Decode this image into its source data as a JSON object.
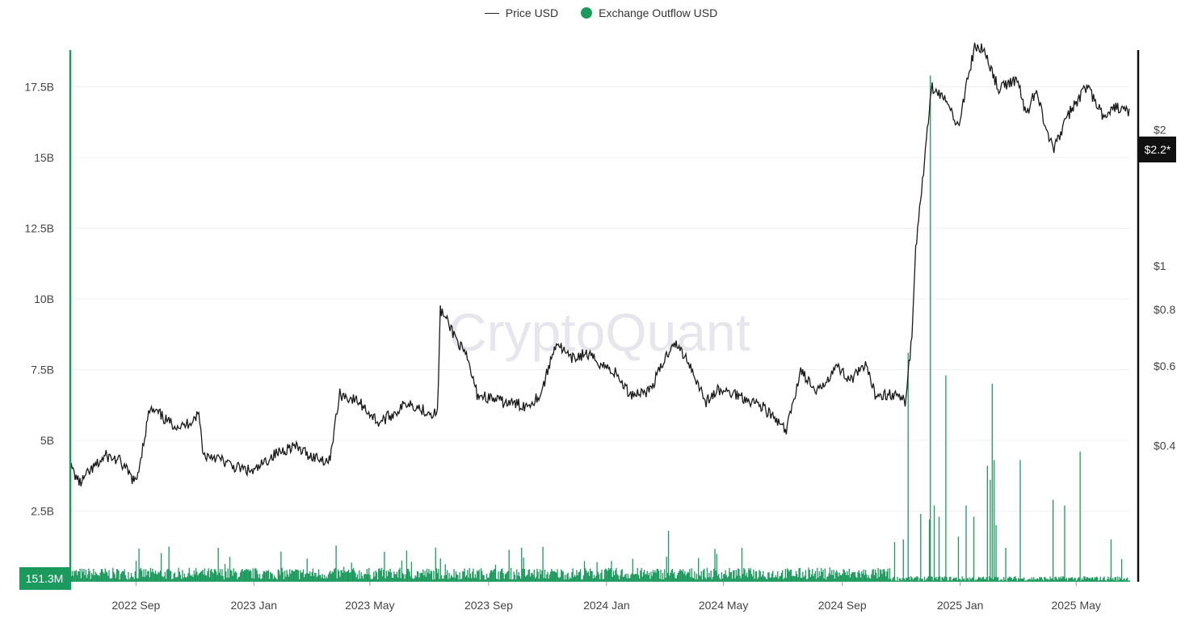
{
  "legend": {
    "price_label": "Price USD",
    "outflow_label": "Exchange Outflow USD"
  },
  "watermark": "CryptoQuant",
  "colors": {
    "price_line": "#1a1a1a",
    "outflow_bar": "#1c9a5e",
    "left_axis_line": "#1c9a5e",
    "right_axis_line": "#111111",
    "grid": "#f0f0f2",
    "left_tag_bg": "#1c9a5e",
    "right_tag_bg": "#111111"
  },
  "chart_data": {
    "type": "bar+line",
    "x_range": [
      "2022-06-25",
      "2025-06-25"
    ],
    "x_ticks": [
      "2022 Sep",
      "2023 Jan",
      "2023 May",
      "2023 Sep",
      "2024 Jan",
      "2024 May",
      "2024 Sep",
      "2025 Jan",
      "2025 May"
    ],
    "x_tick_dates": [
      "2022-09-01",
      "2023-01-01",
      "2023-05-01",
      "2023-09-01",
      "2024-01-01",
      "2024-05-01",
      "2024-09-01",
      "2025-01-01",
      "2025-05-01"
    ],
    "left_axis": {
      "unit": "USD",
      "ylim": [
        0,
        18800000000
      ],
      "ticks": [
        "2.5B",
        "5B",
        "7.5B",
        "10B",
        "12.5B",
        "15B",
        "17.5B"
      ],
      "tick_values": [
        2500000000,
        5000000000,
        7500000000,
        10000000000,
        12500000000,
        15000000000,
        17500000000
      ],
      "current_value_label": "151.3M"
    },
    "right_axis": {
      "scale": "log",
      "ylim": [
        0.2,
        3.0
      ],
      "ticks": [
        "$0.4",
        "$0.6",
        "$0.8",
        "$1",
        "$2"
      ],
      "tick_values": [
        0.4,
        0.6,
        0.8,
        1,
        2
      ],
      "current_value_label": "$2.2*"
    },
    "series": [
      {
        "name": "Price USD",
        "type": "line",
        "axis": "right",
        "points": [
          [
            "2022-06-25",
            0.36
          ],
          [
            "2022-07-05",
            0.33
          ],
          [
            "2022-07-15",
            0.35
          ],
          [
            "2022-08-01",
            0.38
          ],
          [
            "2022-08-15",
            0.37
          ],
          [
            "2022-09-01",
            0.33
          ],
          [
            "2022-09-15",
            0.48
          ],
          [
            "2022-09-25",
            0.47
          ],
          [
            "2022-10-05",
            0.45
          ],
          [
            "2022-10-20",
            0.44
          ],
          [
            "2022-11-05",
            0.47
          ],
          [
            "2022-11-10",
            0.38
          ],
          [
            "2022-11-20",
            0.38
          ],
          [
            "2022-12-10",
            0.36
          ],
          [
            "2023-01-01",
            0.35
          ],
          [
            "2023-01-20",
            0.38
          ],
          [
            "2023-02-10",
            0.4
          ],
          [
            "2023-03-01",
            0.38
          ],
          [
            "2023-03-20",
            0.37
          ],
          [
            "2023-03-31",
            0.52
          ],
          [
            "2023-04-20",
            0.5
          ],
          [
            "2023-05-10",
            0.45
          ],
          [
            "2023-05-25",
            0.47
          ],
          [
            "2023-06-10",
            0.5
          ],
          [
            "2023-06-25",
            0.48
          ],
          [
            "2023-07-10",
            0.47
          ],
          [
            "2023-07-13",
            0.8
          ],
          [
            "2023-07-25",
            0.72
          ],
          [
            "2023-08-10",
            0.62
          ],
          [
            "2023-08-20",
            0.52
          ],
          [
            "2023-09-15",
            0.5
          ],
          [
            "2023-10-10",
            0.49
          ],
          [
            "2023-10-25",
            0.52
          ],
          [
            "2023-11-10",
            0.68
          ],
          [
            "2023-11-25",
            0.62
          ],
          [
            "2023-12-10",
            0.64
          ],
          [
            "2023-12-25",
            0.61
          ],
          [
            "2024-01-10",
            0.58
          ],
          [
            "2024-01-25",
            0.52
          ],
          [
            "2024-02-15",
            0.53
          ],
          [
            "2024-03-10",
            0.68
          ],
          [
            "2024-03-25",
            0.62
          ],
          [
            "2024-04-13",
            0.5
          ],
          [
            "2024-04-25",
            0.53
          ],
          [
            "2024-05-15",
            0.52
          ],
          [
            "2024-06-10",
            0.49
          ],
          [
            "2024-07-05",
            0.43
          ],
          [
            "2024-07-20",
            0.59
          ],
          [
            "2024-08-05",
            0.52
          ],
          [
            "2024-08-25",
            0.6
          ],
          [
            "2024-09-10",
            0.56
          ],
          [
            "2024-09-25",
            0.6
          ],
          [
            "2024-10-05",
            0.52
          ],
          [
            "2024-10-25",
            0.52
          ],
          [
            "2024-11-05",
            0.5
          ],
          [
            "2024-11-12",
            0.7
          ],
          [
            "2024-11-16",
            1.1
          ],
          [
            "2024-11-22",
            1.45
          ],
          [
            "2024-12-02",
            2.5
          ],
          [
            "2024-12-15",
            2.35
          ],
          [
            "2024-12-30",
            2.05
          ],
          [
            "2025-01-16",
            3.05
          ],
          [
            "2025-01-26",
            3.0
          ],
          [
            "2025-02-10",
            2.45
          ],
          [
            "2025-03-01",
            2.6
          ],
          [
            "2025-03-10",
            2.15
          ],
          [
            "2025-03-20",
            2.45
          ],
          [
            "2025-04-07",
            1.8
          ],
          [
            "2025-04-25",
            2.2
          ],
          [
            "2025-05-12",
            2.5
          ],
          [
            "2025-05-31",
            2.1
          ],
          [
            "2025-06-10",
            2.25
          ],
          [
            "2025-06-22",
            2.2
          ]
        ]
      },
      {
        "name": "Exchange Outflow USD",
        "type": "bar",
        "axis": "left",
        "baseline": 300000000,
        "spikes": [
          [
            "2022-11-25",
            1200000000
          ],
          [
            "2023-02-25",
            820000000
          ],
          [
            "2023-07-13",
            820000000
          ],
          [
            "2024-03-05",
            1800000000
          ],
          [
            "2024-05-20",
            1200000000
          ],
          [
            "2024-10-25",
            1400000000
          ],
          [
            "2024-11-03",
            1500000000
          ],
          [
            "2024-11-08",
            8100000000
          ],
          [
            "2024-11-21",
            2400000000
          ],
          [
            "2024-11-30",
            2200000000
          ],
          [
            "2024-12-01",
            17900000000
          ],
          [
            "2024-12-05",
            2700000000
          ],
          [
            "2024-12-10",
            2300000000
          ],
          [
            "2024-12-17",
            7300000000
          ],
          [
            "2024-12-30",
            1600000000
          ],
          [
            "2025-01-07",
            2700000000
          ],
          [
            "2025-01-15",
            2300000000
          ],
          [
            "2025-01-29",
            4100000000
          ],
          [
            "2025-02-01",
            3600000000
          ],
          [
            "2025-02-03",
            7000000000
          ],
          [
            "2025-02-05",
            4300000000
          ],
          [
            "2025-02-07",
            2000000000
          ],
          [
            "2025-02-17",
            1200000000
          ],
          [
            "2025-03-04",
            4300000000
          ],
          [
            "2025-04-07",
            2900000000
          ],
          [
            "2025-04-19",
            2700000000
          ],
          [
            "2025-05-05",
            4600000000
          ],
          [
            "2025-06-06",
            1500000000
          ],
          [
            "2025-06-17",
            800000000
          ]
        ]
      }
    ]
  }
}
